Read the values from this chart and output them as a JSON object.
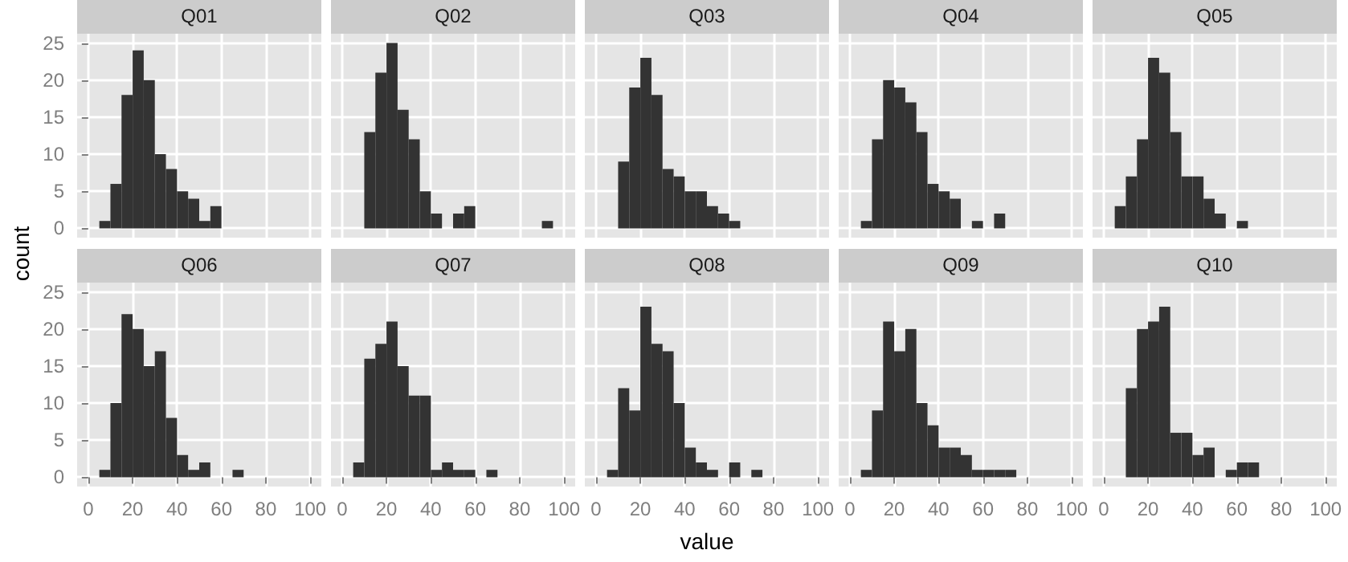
{
  "chart_data": [
    {
      "type": "histogram",
      "title": "Q01",
      "ylabel": "count",
      "bins": [
        0,
        5,
        10,
        15,
        20,
        25,
        30,
        35,
        40,
        45,
        50,
        55,
        60,
        65,
        70,
        75,
        80,
        85,
        90,
        95,
        100
      ],
      "values": [
        0,
        1,
        6,
        18,
        24,
        20,
        10,
        8,
        5,
        4,
        1,
        3,
        0,
        0,
        0,
        0,
        0,
        0,
        0,
        0
      ],
      "color": "#333333",
      "xlim": [
        -5,
        105
      ],
      "ylim": [
        -1.25,
        26.25
      ],
      "xticks": [
        0,
        20,
        40,
        60,
        80,
        100
      ],
      "yticks": [
        0,
        5,
        10,
        15,
        20,
        25
      ],
      "grid": true,
      "tick_labels": "y"
    },
    {
      "type": "histogram",
      "title": "Q02",
      "bins": [
        0,
        5,
        10,
        15,
        20,
        25,
        30,
        35,
        40,
        45,
        50,
        55,
        60,
        65,
        70,
        75,
        80,
        85,
        90,
        95,
        100
      ],
      "values": [
        0,
        0,
        13,
        21,
        25,
        16,
        12,
        5,
        2,
        0,
        2,
        3,
        0,
        0,
        0,
        0,
        0,
        0,
        1,
        0
      ],
      "color": "#333333",
      "xlim": [
        -5,
        105
      ],
      "ylim": [
        -1.25,
        26.25
      ],
      "xticks": [
        0,
        20,
        40,
        60,
        80,
        100
      ],
      "yticks": [
        0,
        5,
        10,
        15,
        20,
        25
      ],
      "grid": true,
      "tick_labels": false
    },
    {
      "type": "histogram",
      "title": "Q03",
      "bins": [
        0,
        5,
        10,
        15,
        20,
        25,
        30,
        35,
        40,
        45,
        50,
        55,
        60,
        65,
        70,
        75,
        80,
        85,
        90,
        95,
        100
      ],
      "values": [
        0,
        0,
        9,
        19,
        23,
        18,
        8,
        7,
        5,
        5,
        3,
        2,
        1,
        0,
        0,
        0,
        0,
        0,
        0,
        0
      ],
      "color": "#333333",
      "xlim": [
        -5,
        105
      ],
      "ylim": [
        -1.25,
        26.25
      ],
      "xticks": [
        0,
        20,
        40,
        60,
        80,
        100
      ],
      "yticks": [
        0,
        5,
        10,
        15,
        20,
        25
      ],
      "grid": true,
      "tick_labels": false
    },
    {
      "type": "histogram",
      "title": "Q04",
      "bins": [
        0,
        5,
        10,
        15,
        20,
        25,
        30,
        35,
        40,
        45,
        50,
        55,
        60,
        65,
        70,
        75,
        80,
        85,
        90,
        95,
        100
      ],
      "values": [
        0,
        1,
        12,
        20,
        19,
        17,
        13,
        6,
        5,
        4,
        0,
        1,
        0,
        2,
        0,
        0,
        0,
        0,
        0,
        0
      ],
      "color": "#333333",
      "xlim": [
        -5,
        105
      ],
      "ylim": [
        -1.25,
        26.25
      ],
      "xticks": [
        0,
        20,
        40,
        60,
        80,
        100
      ],
      "yticks": [
        0,
        5,
        10,
        15,
        20,
        25
      ],
      "grid": true,
      "tick_labels": false
    },
    {
      "type": "histogram",
      "title": "Q05",
      "bins": [
        0,
        5,
        10,
        15,
        20,
        25,
        30,
        35,
        40,
        45,
        50,
        55,
        60,
        65,
        70,
        75,
        80,
        85,
        90,
        95,
        100
      ],
      "values": [
        0,
        3,
        7,
        12,
        23,
        21,
        13,
        7,
        7,
        4,
        2,
        0,
        1,
        0,
        0,
        0,
        0,
        0,
        0,
        0
      ],
      "color": "#333333",
      "xlim": [
        -5,
        105
      ],
      "ylim": [
        -1.25,
        26.25
      ],
      "xticks": [
        0,
        20,
        40,
        60,
        80,
        100
      ],
      "yticks": [
        0,
        5,
        10,
        15,
        20,
        25
      ],
      "grid": true,
      "tick_labels": false
    },
    {
      "type": "histogram",
      "title": "Q06",
      "bins": [
        0,
        5,
        10,
        15,
        20,
        25,
        30,
        35,
        40,
        45,
        50,
        55,
        60,
        65,
        70,
        75,
        80,
        85,
        90,
        95,
        100
      ],
      "values": [
        0,
        1,
        10,
        22,
        20,
        15,
        17,
        8,
        3,
        1,
        2,
        0,
        0,
        1,
        0,
        0,
        0,
        0,
        0,
        0
      ],
      "color": "#333333",
      "xlim": [
        -5,
        105
      ],
      "ylim": [
        -1.25,
        26.25
      ],
      "xticks": [
        0,
        20,
        40,
        60,
        80,
        100
      ],
      "yticks": [
        0,
        5,
        10,
        15,
        20,
        25
      ],
      "grid": true
    },
    {
      "type": "histogram",
      "title": "Q07",
      "bins": [
        0,
        5,
        10,
        15,
        20,
        25,
        30,
        35,
        40,
        45,
        50,
        55,
        60,
        65,
        70,
        75,
        80,
        85,
        90,
        95,
        100
      ],
      "values": [
        0,
        2,
        16,
        18,
        21,
        15,
        11,
        11,
        1,
        2,
        1,
        1,
        0,
        1,
        0,
        0,
        0,
        0,
        0,
        0
      ],
      "color": "#333333",
      "xlim": [
        -5,
        105
      ],
      "ylim": [
        -1.25,
        26.25
      ],
      "xticks": [
        0,
        20,
        40,
        60,
        80,
        100
      ],
      "yticks": [
        0,
        5,
        10,
        15,
        20,
        25
      ],
      "grid": true,
      "tick_labels": "x"
    },
    {
      "type": "histogram",
      "title": "Q08",
      "xlabel": "value",
      "bins": [
        0,
        5,
        10,
        15,
        20,
        25,
        30,
        35,
        40,
        45,
        50,
        55,
        60,
        65,
        70,
        75,
        80,
        85,
        90,
        95,
        100
      ],
      "values": [
        0,
        1,
        12,
        9,
        23,
        18,
        17,
        10,
        4,
        2,
        1,
        0,
        2,
        0,
        1,
        0,
        0,
        0,
        0,
        0
      ],
      "color": "#333333",
      "xlim": [
        -5,
        105
      ],
      "ylim": [
        -1.25,
        26.25
      ],
      "xticks": [
        0,
        20,
        40,
        60,
        80,
        100
      ],
      "yticks": [
        0,
        5,
        10,
        15,
        20,
        25
      ],
      "grid": true,
      "tick_labels": "x"
    },
    {
      "type": "histogram",
      "title": "Q09",
      "bins": [
        0,
        5,
        10,
        15,
        20,
        25,
        30,
        35,
        40,
        45,
        50,
        55,
        60,
        65,
        70,
        75,
        80,
        85,
        90,
        95,
        100
      ],
      "values": [
        0,
        1,
        9,
        21,
        17,
        20,
        10,
        7,
        4,
        4,
        3,
        1,
        1,
        1,
        1,
        0,
        0,
        0,
        0,
        0
      ],
      "color": "#333333",
      "xlim": [
        -5,
        105
      ],
      "ylim": [
        -1.25,
        26.25
      ],
      "xticks": [
        0,
        20,
        40,
        60,
        80,
        100
      ],
      "yticks": [
        0,
        5,
        10,
        15,
        20,
        25
      ],
      "grid": true,
      "tick_labels": "x"
    },
    {
      "type": "histogram",
      "title": "Q10",
      "bins": [
        0,
        5,
        10,
        15,
        20,
        25,
        30,
        35,
        40,
        45,
        50,
        55,
        60,
        65,
        70,
        75,
        80,
        85,
        90,
        95,
        100
      ],
      "values": [
        0,
        0,
        12,
        20,
        21,
        23,
        6,
        6,
        3,
        4,
        0,
        1,
        2,
        2,
        0,
        0,
        0,
        0,
        0,
        0
      ],
      "color": "#333333",
      "xlim": [
        -5,
        105
      ],
      "ylim": [
        -1.25,
        26.25
      ],
      "xticks": [
        0,
        20,
        40,
        60,
        80,
        100
      ],
      "yticks": [
        0,
        5,
        10,
        15,
        20,
        25
      ],
      "grid": true,
      "tick_labels": "x"
    }
  ]
}
